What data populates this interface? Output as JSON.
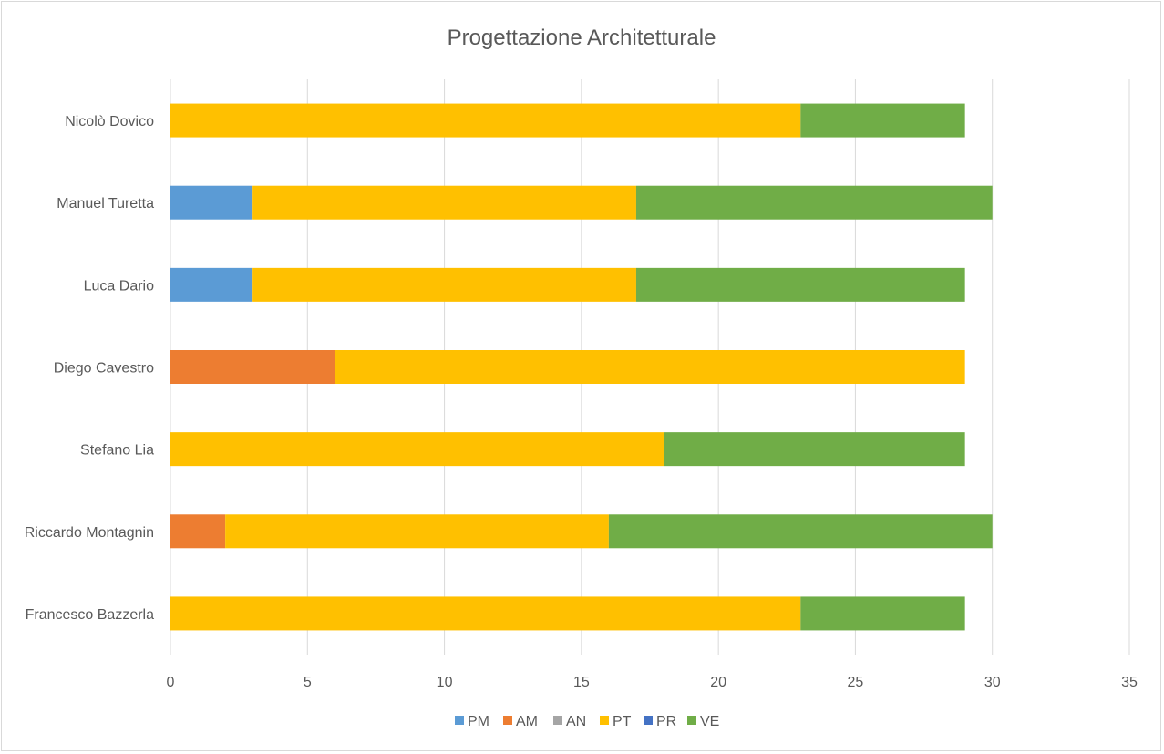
{
  "chart_data": {
    "type": "bar",
    "orientation": "horizontal",
    "stacked": true,
    "title": "Progettazione Architetturale",
    "categories": [
      "Francesco Bazzerla",
      "Riccardo Montagnin",
      "Stefano Lia",
      "Diego Cavestro",
      "Luca Dario",
      "Manuel Turetta",
      "Nicolò Dovico"
    ],
    "series": [
      {
        "name": "PM",
        "color": "#5b9bd5",
        "values": [
          0,
          0,
          0,
          0,
          3,
          3,
          0
        ]
      },
      {
        "name": "AM",
        "color": "#ed7d31",
        "values": [
          0,
          2,
          0,
          6,
          0,
          0,
          0
        ]
      },
      {
        "name": "AN",
        "color": "#a5a5a5",
        "values": [
          0,
          0,
          0,
          0,
          0,
          0,
          0
        ]
      },
      {
        "name": "PT",
        "color": "#ffc000",
        "values": [
          23,
          14,
          18,
          23,
          14,
          14,
          23
        ]
      },
      {
        "name": "PR",
        "color": "#4472c4",
        "values": [
          0,
          0,
          0,
          0,
          0,
          0,
          0
        ]
      },
      {
        "name": "VE",
        "color": "#70ad47",
        "values": [
          6,
          14,
          11,
          0,
          12,
          13,
          6
        ]
      }
    ],
    "xlim": [
      0,
      35
    ],
    "xticks": [
      "0",
      "5",
      "10",
      "15",
      "20",
      "25",
      "30",
      "35"
    ],
    "grid": true,
    "legend_position": "bottom"
  }
}
